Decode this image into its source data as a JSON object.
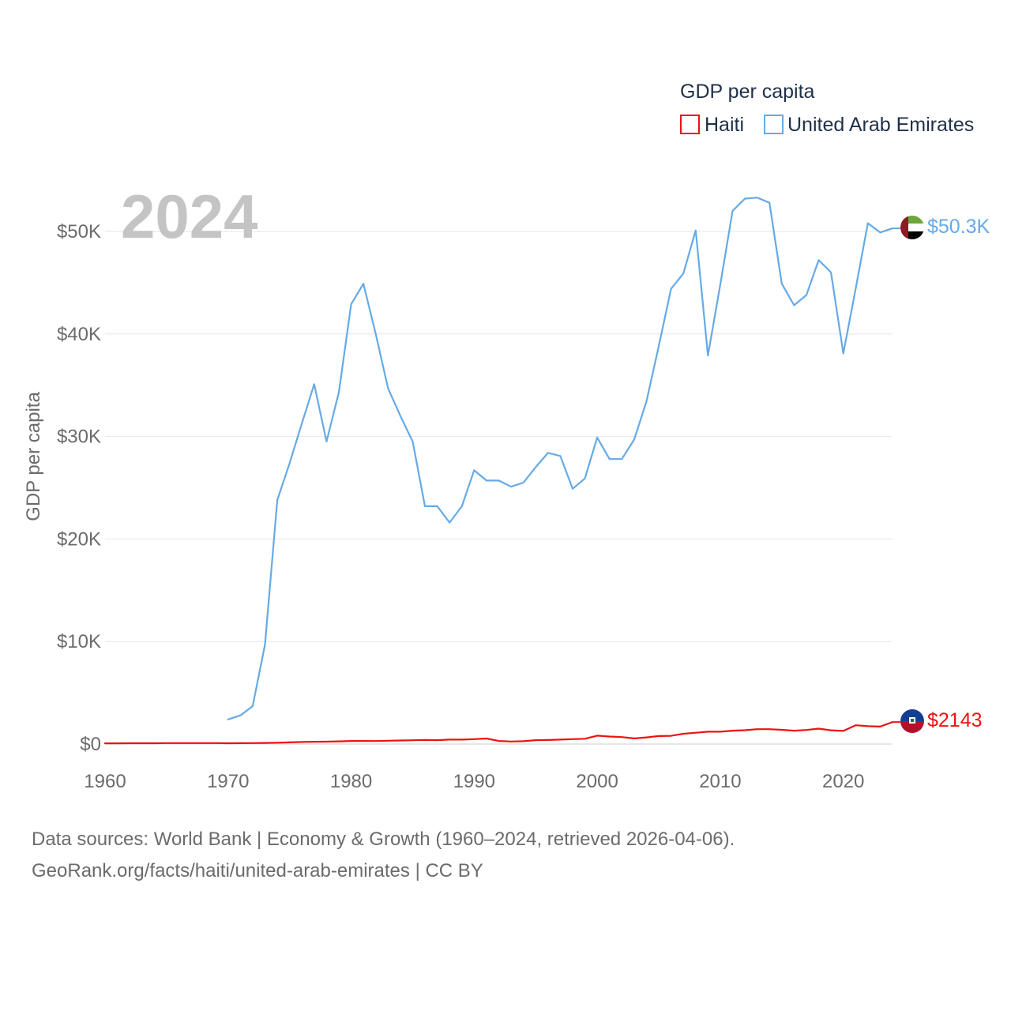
{
  "chart_data": {
    "type": "line",
    "current_year": "2024",
    "ylabel": "GDP per capita",
    "xlim": [
      1960,
      2024
    ],
    "ylim": [
      0,
      50000
    ],
    "y_ticks": [
      {
        "value": 0,
        "label": "$0"
      },
      {
        "value": 10000,
        "label": "$10K"
      },
      {
        "value": 20000,
        "label": "$20K"
      },
      {
        "value": 30000,
        "label": "$30K"
      },
      {
        "value": 40000,
        "label": "$40K"
      },
      {
        "value": 50000,
        "label": "$50K"
      }
    ],
    "x_ticks": [
      {
        "value": 1960,
        "label": "1960"
      },
      {
        "value": 1970,
        "label": "1970"
      },
      {
        "value": 1980,
        "label": "1980"
      },
      {
        "value": 1990,
        "label": "1990"
      },
      {
        "value": 2000,
        "label": "2000"
      },
      {
        "value": 2010,
        "label": "2010"
      },
      {
        "value": 2020,
        "label": "2020"
      }
    ],
    "legend": {
      "title": "GDP per capita",
      "placement": "top-right"
    },
    "series": [
      {
        "name": "Haiti",
        "color": "#ee1111",
        "end_label": "$2143",
        "flag_icon": "haiti-flag-icon",
        "points": [
          [
            1960,
            70
          ],
          [
            1961,
            70
          ],
          [
            1962,
            75
          ],
          [
            1963,
            75
          ],
          [
            1964,
            80
          ],
          [
            1965,
            90
          ],
          [
            1966,
            95
          ],
          [
            1967,
            95
          ],
          [
            1968,
            95
          ],
          [
            1969,
            95
          ],
          [
            1970,
            80
          ],
          [
            1971,
            85
          ],
          [
            1972,
            90
          ],
          [
            1973,
            110
          ],
          [
            1974,
            130
          ],
          [
            1975,
            160
          ],
          [
            1976,
            200
          ],
          [
            1977,
            220
          ],
          [
            1978,
            230
          ],
          [
            1979,
            260
          ],
          [
            1980,
            300
          ],
          [
            1981,
            300
          ],
          [
            1982,
            290
          ],
          [
            1983,
            320
          ],
          [
            1984,
            350
          ],
          [
            1985,
            370
          ],
          [
            1986,
            400
          ],
          [
            1987,
            380
          ],
          [
            1988,
            430
          ],
          [
            1989,
            430
          ],
          [
            1990,
            480
          ],
          [
            1991,
            540
          ],
          [
            1992,
            300
          ],
          [
            1993,
            250
          ],
          [
            1994,
            280
          ],
          [
            1995,
            380
          ],
          [
            1996,
            390
          ],
          [
            1997,
            430
          ],
          [
            1998,
            480
          ],
          [
            1999,
            520
          ],
          [
            2000,
            820
          ],
          [
            2001,
            730
          ],
          [
            2002,
            680
          ],
          [
            2003,
            550
          ],
          [
            2004,
            650
          ],
          [
            2005,
            780
          ],
          [
            2006,
            800
          ],
          [
            2007,
            1000
          ],
          [
            2008,
            1100
          ],
          [
            2009,
            1200
          ],
          [
            2010,
            1200
          ],
          [
            2011,
            1300
          ],
          [
            2012,
            1350
          ],
          [
            2013,
            1450
          ],
          [
            2014,
            1450
          ],
          [
            2015,
            1390
          ],
          [
            2016,
            1300
          ],
          [
            2017,
            1370
          ],
          [
            2018,
            1500
          ],
          [
            2019,
            1340
          ],
          [
            2020,
            1280
          ],
          [
            2021,
            1830
          ],
          [
            2022,
            1740
          ],
          [
            2023,
            1700
          ],
          [
            2024,
            2143
          ]
        ]
      },
      {
        "name": "United Arab Emirates",
        "color": "#66aae6",
        "end_label": "$50.3K",
        "flag_icon": "uae-flag-icon",
        "points": [
          [
            1970,
            2400
          ],
          [
            1971,
            2800
          ],
          [
            1972,
            3700
          ],
          [
            1973,
            9700
          ],
          [
            1974,
            23800
          ],
          [
            1975,
            27400
          ],
          [
            1976,
            31300
          ],
          [
            1977,
            35100
          ],
          [
            1978,
            29500
          ],
          [
            1979,
            34300
          ],
          [
            1980,
            42900
          ],
          [
            1981,
            44900
          ],
          [
            1982,
            40000
          ],
          [
            1983,
            34700
          ],
          [
            1984,
            32000
          ],
          [
            1985,
            29500
          ],
          [
            1986,
            23200
          ],
          [
            1987,
            23200
          ],
          [
            1988,
            21600
          ],
          [
            1989,
            23200
          ],
          [
            1990,
            26700
          ],
          [
            1991,
            25700
          ],
          [
            1992,
            25700
          ],
          [
            1993,
            25100
          ],
          [
            1994,
            25500
          ],
          [
            1995,
            27000
          ],
          [
            1996,
            28400
          ],
          [
            1997,
            28100
          ],
          [
            1998,
            24900
          ],
          [
            1999,
            25900
          ],
          [
            2000,
            29900
          ],
          [
            2001,
            27800
          ],
          [
            2002,
            27800
          ],
          [
            2003,
            29700
          ],
          [
            2004,
            33400
          ],
          [
            2005,
            38800
          ],
          [
            2006,
            44400
          ],
          [
            2007,
            45900
          ],
          [
            2008,
            50100
          ],
          [
            2009,
            37900
          ],
          [
            2010,
            44800
          ],
          [
            2011,
            52000
          ],
          [
            2012,
            53200
          ],
          [
            2013,
            53300
          ],
          [
            2014,
            52800
          ],
          [
            2015,
            44900
          ],
          [
            2016,
            42800
          ],
          [
            2017,
            43800
          ],
          [
            2018,
            47200
          ],
          [
            2019,
            46000
          ],
          [
            2020,
            38100
          ],
          [
            2021,
            44400
          ],
          [
            2022,
            50800
          ],
          [
            2023,
            49900
          ],
          [
            2024,
            50300
          ]
        ]
      }
    ]
  },
  "footer": {
    "line1": "Data sources: World Bank | Economy & Growth (1960–2024, retrieved 2026-04-06).",
    "line2": "GeoRank.org/facts/haiti/united-arab-emirates | CC BY"
  }
}
